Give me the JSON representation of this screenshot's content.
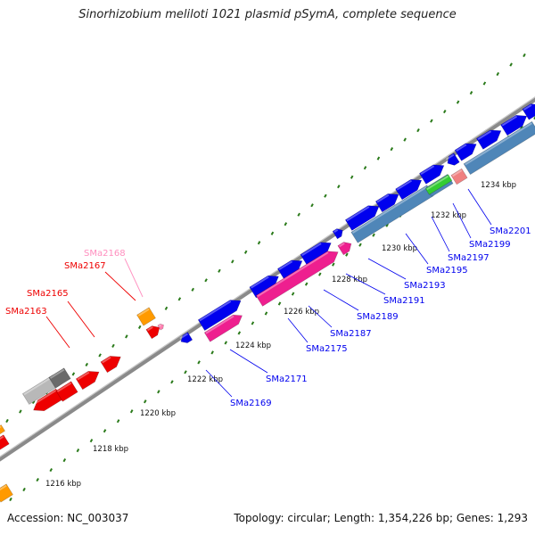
{
  "title": "Sinorhizobium meliloti 1021 plasmid pSymA, complete sequence",
  "footer": {
    "accession": "Accession: NC_003037",
    "summary": "Topology: circular; Length: 1,354,226 bp; Genes: 1,293"
  },
  "colors": {
    "blue": "#0000ee",
    "steelblue": "#4f86b8",
    "pink": "#ee1f8f",
    "red": "#ee0000",
    "orange": "#ff9a00",
    "green": "#33cc33",
    "salmon": "#f08080",
    "grey": "#b8b8b8",
    "darkgrey": "#6a6a6a",
    "tick": "#2a7a1a"
  },
  "ticks": [
    {
      "label": "1216 kbp"
    },
    {
      "label": "1218 kbp"
    },
    {
      "label": "1220 kbp"
    },
    {
      "label": "1222 kbp"
    },
    {
      "label": "1224 kbp"
    },
    {
      "label": "1226 kbp"
    },
    {
      "label": "1228 kbp"
    },
    {
      "label": "1230 kbp"
    },
    {
      "label": "1232 kbp"
    },
    {
      "label": "1234 kbp"
    }
  ],
  "gene_labels_forward": [
    {
      "label": "SMa2163",
      "color": "red"
    },
    {
      "label": "SMa2165",
      "color": "red"
    },
    {
      "label": "SMa2167",
      "color": "red"
    },
    {
      "label": "SMa2168",
      "color": "pink-light"
    }
  ],
  "gene_labels_reverse": [
    {
      "label": "SMa2169"
    },
    {
      "label": "SMa2171"
    },
    {
      "label": "SMa2175"
    },
    {
      "label": "SMa2187"
    },
    {
      "label": "SMa2189"
    },
    {
      "label": "SMa2191"
    },
    {
      "label": "SMa2193"
    },
    {
      "label": "SMa2195"
    },
    {
      "label": "SMa2197"
    },
    {
      "label": "SMa2199"
    },
    {
      "label": "SMa2201"
    }
  ]
}
